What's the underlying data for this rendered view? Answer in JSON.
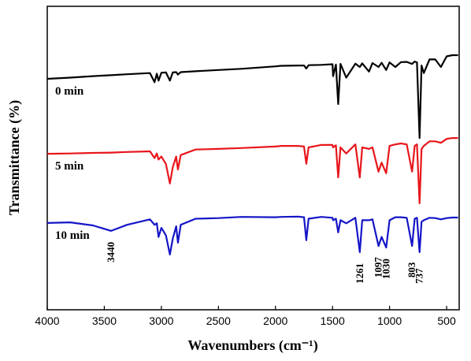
{
  "chart_data": {
    "type": "line",
    "xlabel": "Wavenumbers (cm⁻¹)",
    "ylabel": "Transmittance (%)",
    "xlim": [
      4000,
      390
    ],
    "ylim": [
      0,
      100
    ],
    "xticks": [
      4000,
      3500,
      3000,
      2500,
      2000,
      1500,
      1000,
      500
    ],
    "x": [
      4000,
      3800,
      3600,
      3440,
      3300,
      3100,
      3060,
      3040,
      3025,
      3000,
      2960,
      2925,
      2900,
      2870,
      2855,
      2830,
      2700,
      2500,
      2300,
      2000,
      1950,
      1800,
      1750,
      1730,
      1710,
      1600,
      1500,
      1495,
      1470,
      1450,
      1430,
      1380,
      1300,
      1261,
      1240,
      1180,
      1150,
      1097,
      1070,
      1030,
      1000,
      950,
      900,
      850,
      803,
      780,
      760,
      737,
      720,
      700,
      650,
      600,
      550,
      500,
      450,
      400
    ],
    "series": [
      {
        "name": "0 min",
        "color": "#000000",
        "values": [
          76.1,
          76.5,
          77.0,
          77.3,
          77.6,
          78.0,
          75.0,
          77.8,
          75.5,
          78.1,
          78.2,
          75.5,
          78.2,
          78.3,
          77.5,
          78.3,
          78.6,
          79.0,
          79.4,
          80.2,
          80.4,
          80.5,
          80.5,
          79.5,
          80.6,
          80.7,
          80.9,
          77.0,
          80.8,
          67.8,
          81.0,
          76.5,
          81.1,
          80.0,
          81.2,
          78.5,
          81.3,
          80.0,
          81.4,
          79.0,
          81.5,
          80.0,
          81.6,
          81.7,
          81.0,
          81.8,
          81.5,
          56.6,
          80.5,
          78.0,
          82.5,
          82.5,
          80.0,
          83.5,
          83.9,
          83.9
        ]
      },
      {
        "name": "5 min",
        "color": "#e8161b",
        "values": [
          51.4,
          51.5,
          51.7,
          51.8,
          52.0,
          52.2,
          50.0,
          51.5,
          49.5,
          50.5,
          48.0,
          41.6,
          47.0,
          50.5,
          46.2,
          51.0,
          52.8,
          53.0,
          53.3,
          53.8,
          54.0,
          54.0,
          53.8,
          48.1,
          53.5,
          54.3,
          54.3,
          53.5,
          54.2,
          43.6,
          53.5,
          51.5,
          54.5,
          43.6,
          53.5,
          53.0,
          53.5,
          45.5,
          48.5,
          45.0,
          54.0,
          54.5,
          54.8,
          54.5,
          45.5,
          54.0,
          54.5,
          35.1,
          53.0,
          54.0,
          55.5,
          55.5,
          55.0,
          56.3,
          56.6,
          56.6
        ]
      },
      {
        "name": "10 min",
        "color": "#1515c8",
        "values": [
          28.6,
          28.8,
          27.8,
          26.0,
          28.0,
          29.8,
          28.0,
          28.5,
          24.0,
          27.0,
          24.5,
          18.2,
          23.5,
          27.5,
          22.1,
          28.0,
          30.0,
          30.2,
          30.6,
          30.5,
          30.6,
          30.7,
          30.5,
          22.9,
          30.0,
          30.6,
          30.3,
          29.5,
          30.0,
          25.5,
          29.5,
          28.5,
          30.3,
          19.0,
          29.5,
          29.5,
          29.8,
          21.0,
          24.0,
          20.5,
          29.5,
          30.5,
          30.5,
          30.3,
          21.0,
          30.0,
          30.3,
          19.0,
          29.0,
          29.5,
          30.3,
          30.2,
          29.8,
          30.2,
          30.4,
          30.4
        ]
      }
    ],
    "annotations": [
      {
        "label": "3440",
        "x": 3440
      },
      {
        "label": "1261",
        "x": 1261
      },
      {
        "label": "1097",
        "x": 1097
      },
      {
        "label": "1030",
        "x": 1030
      },
      {
        "label": "803",
        "x": 803
      },
      {
        "label": "737",
        "x": 737
      }
    ]
  }
}
